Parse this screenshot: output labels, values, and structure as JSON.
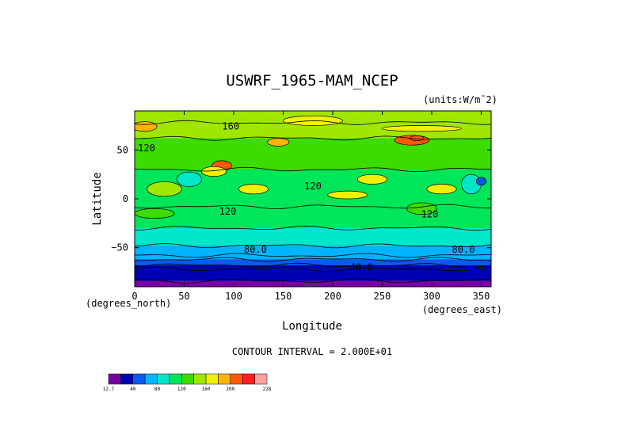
{
  "chart_data": {
    "type": "heatmap",
    "title": "USWRF_1965-MAM_NCEP",
    "units": "(units:W/m^2)",
    "units_display": "(units:W/m¯2)",
    "xlabel": "Longitude",
    "ylabel": "Latitude",
    "x_unit_note": "(degrees_east)",
    "y_unit_note": "(degrees_north)",
    "xlim": [
      0,
      360
    ],
    "ylim": [
      -90,
      90
    ],
    "x_ticks": [
      0,
      50,
      100,
      150,
      200,
      250,
      300,
      350
    ],
    "y_ticks": [
      50,
      0,
      -50
    ],
    "y_tick_labels": [
      "50",
      "0",
      "−50"
    ],
    "contour_interval_text": "CONTOUR INTERVAL = 2.000E+01",
    "contour_labels": [
      {
        "text": "160",
        "lon": 97,
        "lat": 74
      },
      {
        "text": "120",
        "lon": 12,
        "lat": 52
      },
      {
        "text": "120",
        "lon": 180,
        "lat": 13
      },
      {
        "text": "120",
        "lon": 94,
        "lat": -13
      },
      {
        "text": "120",
        "lon": 298,
        "lat": -16
      },
      {
        "text": "80.0",
        "lon": 122,
        "lat": -52
      },
      {
        "text": "80.0",
        "lon": 332,
        "lat": -52
      },
      {
        "text": "40.0",
        "lon": 229,
        "lat": -70
      }
    ],
    "colorbar": {
      "tick_labels": [
        "12.7",
        "40",
        "80",
        "120",
        "160",
        "200",
        "228"
      ],
      "levels": [
        12.7,
        20,
        40,
        60,
        80,
        100,
        120,
        140,
        160,
        180,
        200,
        220,
        228
      ],
      "colors": [
        "#7a00a8",
        "#0000b4",
        "#0a5af0",
        "#00b4ff",
        "#00e6c8",
        "#00e65a",
        "#3cdc00",
        "#a0e600",
        "#f0f000",
        "#ffb400",
        "#ff5a00",
        "#ff1e1e",
        "#ffa0a0"
      ]
    },
    "zonal_bands": [
      {
        "lat_top": 90,
        "lat_bottom": 78,
        "value": 150
      },
      {
        "lat_top": 78,
        "lat_bottom": 62,
        "value": 140
      },
      {
        "lat_top": 62,
        "lat_bottom": 30,
        "value": 125
      },
      {
        "lat_top": 30,
        "lat_bottom": -8,
        "value": 118
      },
      {
        "lat_top": -8,
        "lat_bottom": -30,
        "value": 110
      },
      {
        "lat_top": -30,
        "lat_bottom": -48,
        "value": 90
      },
      {
        "lat_top": -48,
        "lat_bottom": -58,
        "value": 75
      },
      {
        "lat_top": -58,
        "lat_bottom": -62,
        "value": 65
      },
      {
        "lat_top": -62,
        "lat_bottom": -68,
        "value": 50
      },
      {
        "lat_top": -68,
        "lat_bottom": -72,
        "value": 35
      },
      {
        "lat_top": -72,
        "lat_bottom": -84,
        "value": 25
      },
      {
        "lat_top": -84,
        "lat_bottom": -90,
        "value": 14
      }
    ],
    "features": [
      {
        "lon": 10,
        "lat": 74,
        "w": 25,
        "h": 10,
        "value": 190
      },
      {
        "lon": 145,
        "lat": 58,
        "w": 22,
        "h": 8,
        "value": 190
      },
      {
        "lon": 88,
        "lat": 34,
        "w": 20,
        "h": 10,
        "value": 200
      },
      {
        "lon": 280,
        "lat": 60,
        "w": 35,
        "h": 10,
        "value": 200
      },
      {
        "lon": 285,
        "lat": 62,
        "w": 14,
        "h": 5,
        "value": 215
      },
      {
        "lon": 55,
        "lat": 20,
        "w": 25,
        "h": 15,
        "value": 85
      },
      {
        "lon": 340,
        "lat": 15,
        "w": 20,
        "h": 20,
        "value": 80
      },
      {
        "lon": 350,
        "lat": 18,
        "w": 10,
        "h": 8,
        "value": 40
      },
      {
        "lon": 80,
        "lat": 28,
        "w": 25,
        "h": 10,
        "value": 165
      },
      {
        "lon": 30,
        "lat": 10,
        "w": 35,
        "h": 15,
        "value": 150
      },
      {
        "lon": 120,
        "lat": 10,
        "w": 30,
        "h": 10,
        "value": 160
      },
      {
        "lon": 240,
        "lat": 20,
        "w": 30,
        "h": 10,
        "value": 165
      },
      {
        "lon": 310,
        "lat": 10,
        "w": 30,
        "h": 10,
        "value": 165
      },
      {
        "lon": 215,
        "lat": 4,
        "w": 40,
        "h": 8,
        "value": 160
      },
      {
        "lon": 20,
        "lat": -15,
        "w": 40,
        "h": 10,
        "value": 130
      },
      {
        "lon": 290,
        "lat": -10,
        "w": 30,
        "h": 12,
        "value": 125
      },
      {
        "lon": 180,
        "lat": 80,
        "w": 60,
        "h": 10,
        "value": 165
      },
      {
        "lon": 290,
        "lat": 72,
        "w": 80,
        "h": 6,
        "value": 160
      }
    ]
  }
}
